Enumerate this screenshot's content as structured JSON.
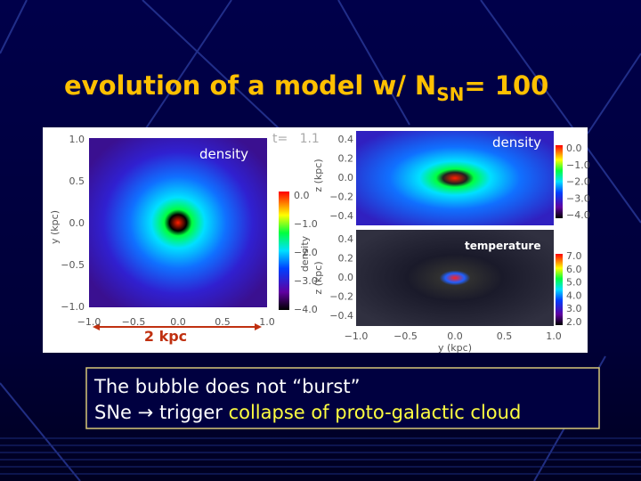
{
  "title": {
    "text": "evolution of a model w/ N",
    "subscript": "SN",
    "suffix": "= 100"
  },
  "figure": {
    "left_panel": {
      "label": "density",
      "time_label": "t=   1.1",
      "y_axis_label": "y (kpc)",
      "y_ticks": [
        "1.0",
        "0.5",
        "0.0",
        "−0.5",
        "−1.0"
      ],
      "x_ticks": [
        "−1.0",
        "−0.5",
        "0.0",
        "0.5",
        "1.0"
      ],
      "colorbar_label": "density",
      "colorbar_ticks": [
        "0.0",
        "−1.0",
        "−2.0",
        "−3.0",
        "−4.0"
      ],
      "scale_bar": "2 kpc"
    },
    "top_right_panel": {
      "label": "density",
      "y_axis_label": "z (kpc)",
      "y_ticks": [
        "0.4",
        "0.2",
        "0.0",
        "−0.2",
        "−0.4"
      ],
      "colorbar_ticks": [
        "0.0",
        "−1.0",
        "−2.0",
        "−3.0",
        "−4.0"
      ]
    },
    "bottom_right_panel": {
      "label": "temperature",
      "y_axis_label": "z (kpc)",
      "y_ticks": [
        "0.4",
        "0.2",
        "0.0",
        "−0.2",
        "−0.4"
      ],
      "x_ticks": [
        "−1.0",
        "−0.5",
        "0.0",
        "0.5",
        "1.0"
      ],
      "x_axis_label": "y (kpc)",
      "colorbar_ticks": [
        "7.0",
        "6.0",
        "5.0",
        "4.0",
        "3.0",
        "2.0"
      ]
    }
  },
  "caption": {
    "line1": "The bubble does not “burst”",
    "line2": {
      "start": "SNe",
      "arrow": "→",
      "middle": "trigger",
      "highlight": "collapse of proto-galactic cloud"
    }
  }
}
